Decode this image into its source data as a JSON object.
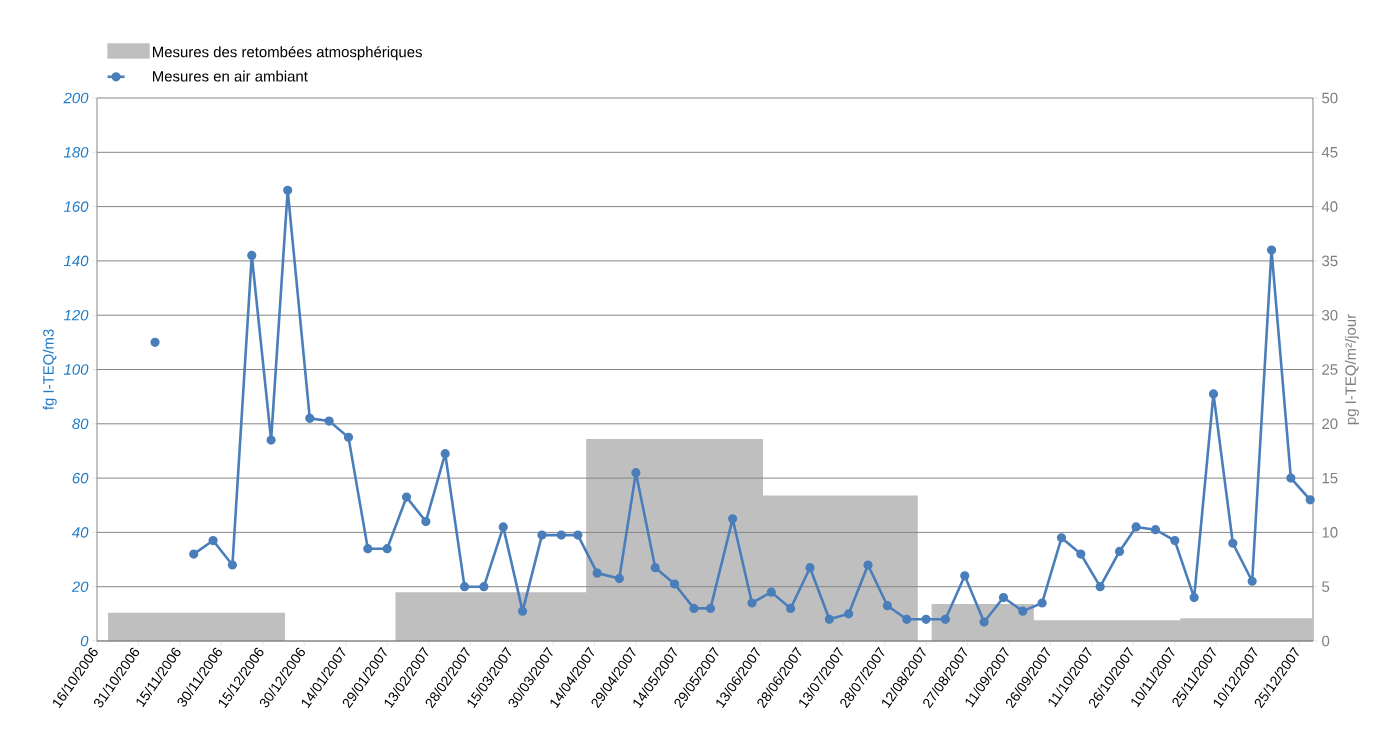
{
  "chart_data": {
    "type": "line",
    "ylabel": "fg I-TEQ/m3",
    "y2label": "pg I-TEQ/m²/jour",
    "xlim": [
      "2006-10-16",
      "2007-12-30"
    ],
    "xticks": [
      {
        "value": "2006-10-16",
        "label": "16/10/2006"
      },
      {
        "value": "2006-10-31",
        "label": "31/10/2006"
      },
      {
        "value": "2006-11-15",
        "label": "15/11/2006"
      },
      {
        "value": "2006-11-30",
        "label": "30/11/2006"
      },
      {
        "value": "2006-12-15",
        "label": "15/12/2006"
      },
      {
        "value": "2006-12-30",
        "label": "30/12/2006"
      },
      {
        "value": "2007-01-14",
        "label": "14/01/2007"
      },
      {
        "value": "2007-01-29",
        "label": "29/01/2007"
      },
      {
        "value": "2007-02-13",
        "label": "13/02/2007"
      },
      {
        "value": "2007-02-28",
        "label": "28/02/2007"
      },
      {
        "value": "2007-03-15",
        "label": "15/03/2007"
      },
      {
        "value": "2007-03-30",
        "label": "30/03/2007"
      },
      {
        "value": "2007-04-14",
        "label": "14/04/2007"
      },
      {
        "value": "2007-04-29",
        "label": "29/04/2007"
      },
      {
        "value": "2007-05-14",
        "label": "14/05/2007"
      },
      {
        "value": "2007-05-29",
        "label": "29/05/2007"
      },
      {
        "value": "2007-06-13",
        "label": "13/06/2007"
      },
      {
        "value": "2007-06-28",
        "label": "28/06/2007"
      },
      {
        "value": "2007-07-13",
        "label": "13/07/2007"
      },
      {
        "value": "2007-07-28",
        "label": "28/07/2007"
      },
      {
        "value": "2007-08-12",
        "label": "12/08/2007"
      },
      {
        "value": "2007-08-27",
        "label": "27/08/2007"
      },
      {
        "value": "2007-09-11",
        "label": "11/09/2007"
      },
      {
        "value": "2007-09-26",
        "label": "26/09/2007"
      },
      {
        "value": "2007-10-11",
        "label": "11/10/2007"
      },
      {
        "value": "2007-10-26",
        "label": "26/10/2007"
      },
      {
        "value": "2007-11-10",
        "label": "10/11/2007"
      },
      {
        "value": "2007-11-25",
        "label": "25/11/2007"
      },
      {
        "value": "2007-12-10",
        "label": "10/12/2007"
      },
      {
        "value": "2007-12-25",
        "label": "25/12/2007"
      }
    ],
    "ylim": [
      0,
      200
    ],
    "yticks": [
      0,
      20,
      40,
      60,
      80,
      100,
      120,
      140,
      160,
      180,
      200
    ],
    "y2lim": [
      0,
      50
    ],
    "y2ticks": [
      0,
      5,
      10,
      15,
      20,
      25,
      30,
      35,
      40,
      45,
      50
    ],
    "grid": "y",
    "legend": "top left",
    "series": [
      {
        "name": "Mesures des retombées atmosphériques",
        "type": "area",
        "axis": "y2",
        "color": "#bfbfbf",
        "x": [
          "2006-10-20",
          "2006-12-23",
          null,
          "2007-02-01",
          "2007-04-11",
          "2007-04-11",
          "2007-06-14",
          "2007-06-14",
          "2007-08-09",
          null,
          "2007-08-14",
          "2007-09-20",
          "2007-09-20",
          "2007-11-12",
          "2007-11-12",
          "2007-12-30"
        ],
        "values": [
          2.6,
          2.6,
          null,
          4.5,
          4.5,
          18.6,
          18.6,
          13.4,
          13.4,
          null,
          3.4,
          3.4,
          1.9,
          1.9,
          2.1,
          2.1
        ]
      },
      {
        "name": "Mesures en air ambiant",
        "color": "#4a7ebb",
        "marker": "circle",
        "line_style": "solid",
        "x": [
          "2006-11-06",
          "2006-11-13",
          "2006-11-20",
          "2006-11-27",
          "2006-12-04",
          "2006-12-11",
          "2006-12-18",
          "2006-12-24",
          "2007-01-01",
          "2007-01-08",
          "2007-01-15",
          "2007-01-22",
          "2007-01-29",
          "2007-02-05",
          "2007-02-12",
          "2007-02-19",
          "2007-02-26",
          "2007-03-05",
          "2007-03-12",
          "2007-03-19",
          "2007-03-26",
          "2007-04-02",
          "2007-04-08",
          "2007-04-15",
          "2007-04-23",
          "2007-04-29",
          "2007-05-06",
          "2007-05-13",
          "2007-05-20",
          "2007-05-26",
          "2007-06-03",
          "2007-06-10",
          "2007-06-17",
          "2007-06-24",
          "2007-07-01",
          "2007-07-08",
          "2007-07-15",
          "2007-07-22",
          "2007-07-29",
          "2007-08-05",
          "2007-08-12",
          "2007-08-19",
          "2007-08-26",
          "2007-09-02",
          "2007-09-09",
          "2007-09-16",
          "2007-09-23",
          "2007-09-30",
          "2007-10-07",
          "2007-10-14",
          "2007-10-21",
          "2007-10-27",
          "2007-11-03",
          "2007-11-10",
          "2007-11-17",
          "2007-11-24",
          "2007-12-01",
          "2007-12-08",
          "2007-12-15",
          "2007-12-22",
          "2007-12-29"
        ],
        "values": [
          110,
          null,
          32,
          37,
          28,
          142,
          74,
          166,
          82,
          81,
          75,
          34,
          34,
          53,
          44,
          69,
          20,
          20,
          42,
          11,
          39,
          39,
          39,
          25,
          23,
          62,
          27,
          21,
          12,
          12,
          45,
          14,
          18,
          12,
          27,
          8,
          10,
          28,
          13,
          8,
          8,
          8,
          24,
          7,
          16,
          11,
          14,
          38,
          32,
          20,
          33,
          42,
          41,
          37,
          16,
          91,
          36,
          22,
          144,
          60,
          52
        ]
      }
    ]
  }
}
